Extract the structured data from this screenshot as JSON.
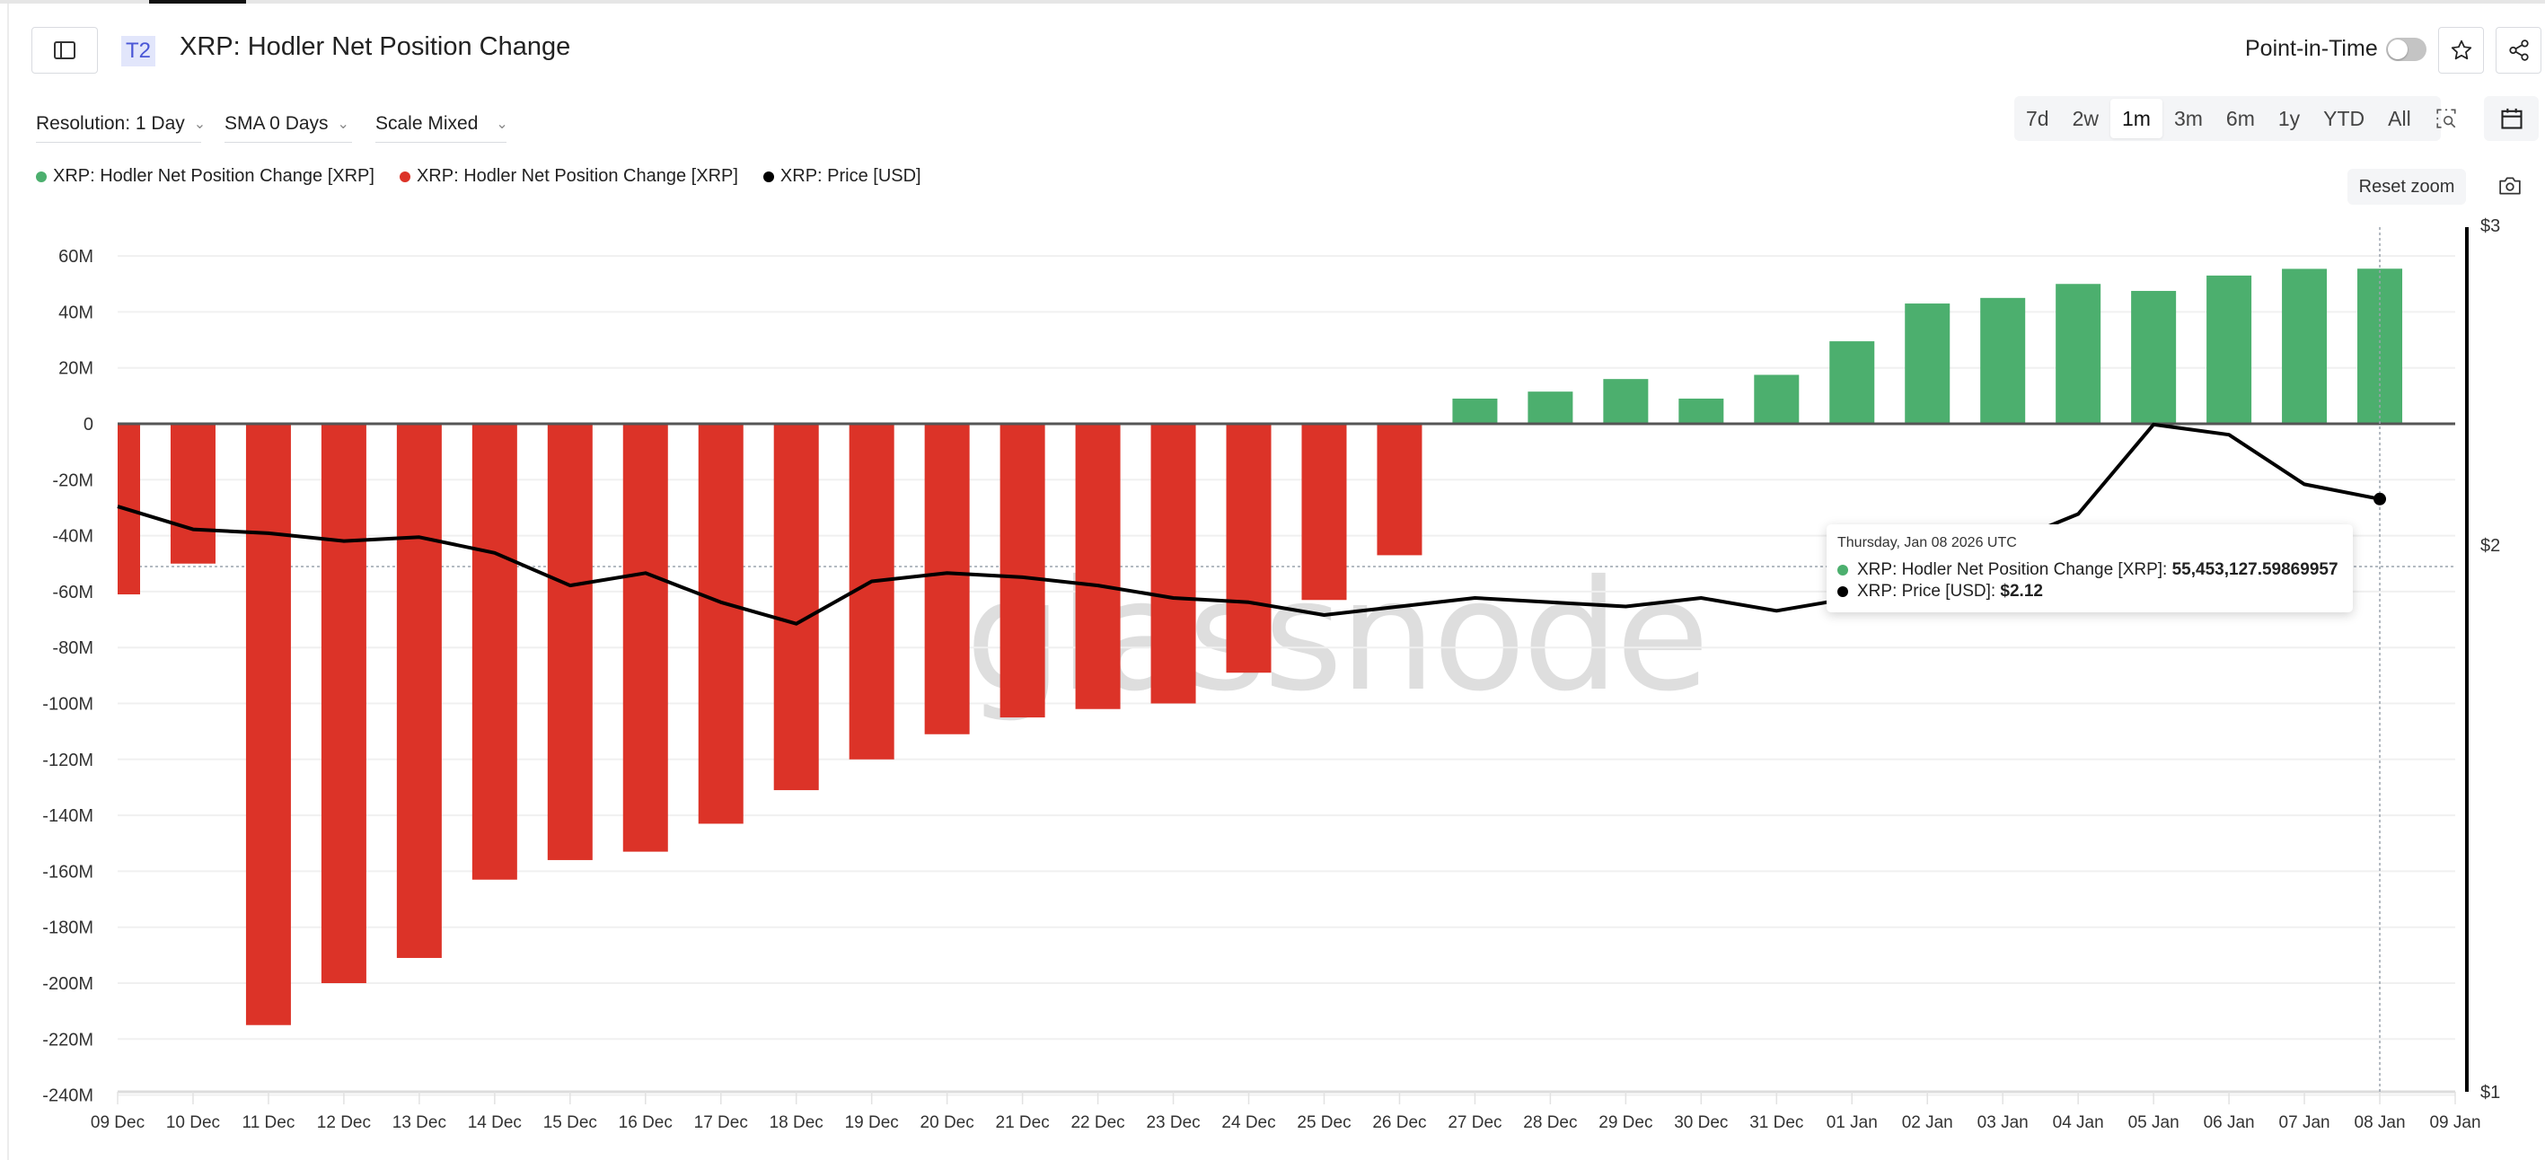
{
  "header": {
    "badge": "T2",
    "title": "XRP: Hodler Net Position Change",
    "point_in_time_label": "Point-in-Time",
    "point_in_time_enabled": false
  },
  "filters": {
    "resolution": "Resolution: 1 Day",
    "sma": "SMA 0 Days",
    "scale": "Scale Mixed"
  },
  "range_buttons": [
    "7d",
    "2w",
    "1m",
    "3m",
    "6m",
    "1y",
    "YTD",
    "All"
  ],
  "range_selected": "1m",
  "legend": [
    {
      "label": "XRP: Hodler Net Position Change [XRP]",
      "color": "#4caf6e"
    },
    {
      "label": "XRP: Hodler Net Position Change [XRP]",
      "color": "#dc3328"
    },
    {
      "label": "XRP: Price [USD]",
      "color": "#000000"
    }
  ],
  "reset_zoom_label": "Reset zoom",
  "watermark": "glassnode",
  "tooltip": {
    "date": "Thursday, Jan 08 2026 UTC",
    "rows": [
      {
        "label": "XRP: Hodler Net Position Change [XRP]: ",
        "value": "55,453,127.59869957",
        "color": "#4caf6e"
      },
      {
        "label": "XRP: Price [USD]: ",
        "value": "$2.12",
        "color": "#000000"
      }
    ]
  },
  "colors": {
    "positive": "#4caf6e",
    "negative": "#dc3328",
    "price": "#000000"
  },
  "chart_data": {
    "type": "bar",
    "title": "XRP: Hodler Net Position Change",
    "categories": [
      "09 Dec",
      "10 Dec",
      "11 Dec",
      "12 Dec",
      "13 Dec",
      "14 Dec",
      "15 Dec",
      "16 Dec",
      "17 Dec",
      "18 Dec",
      "19 Dec",
      "20 Dec",
      "21 Dec",
      "22 Dec",
      "23 Dec",
      "24 Dec",
      "25 Dec",
      "26 Dec",
      "27 Dec",
      "28 Dec",
      "29 Dec",
      "30 Dec",
      "31 Dec",
      "01 Jan",
      "02 Jan",
      "03 Jan",
      "04 Jan",
      "05 Jan",
      "06 Jan",
      "07 Jan",
      "08 Jan"
    ],
    "x_tick_labels": [
      "09 Dec",
      "10 Dec",
      "11 Dec",
      "12 Dec",
      "13 Dec",
      "14 Dec",
      "15 Dec",
      "16 Dec",
      "17 Dec",
      "18 Dec",
      "19 Dec",
      "20 Dec",
      "21 Dec",
      "22 Dec",
      "23 Dec",
      "24 Dec",
      "25 Dec",
      "26 Dec",
      "27 Dec",
      "28 Dec",
      "29 Dec",
      "30 Dec",
      "31 Dec",
      "01 Jan",
      "02 Jan",
      "03 Jan",
      "04 Jan",
      "05 Jan",
      "06 Jan",
      "07 Jan",
      "08 Jan",
      "09 Jan"
    ],
    "series": [
      {
        "name": "XRP: Hodler Net Position Change [XRP]",
        "axis": "left",
        "kind": "bar",
        "values_millions": [
          -61,
          -50,
          -215,
          -200,
          -191,
          -163,
          -156,
          -153,
          -143,
          -131,
          -120,
          -111,
          -105,
          -102,
          -100,
          -89,
          -63,
          -47,
          9,
          11.5,
          16,
          9,
          17.5,
          29.5,
          43,
          45,
          50,
          47.5,
          53,
          55.4,
          55.453
        ]
      },
      {
        "name": "XRP: Price [USD]",
        "axis": "right",
        "kind": "line",
        "values": [
          2.1,
          2.04,
          2.03,
          2.01,
          2.02,
          1.98,
          1.9,
          1.93,
          1.86,
          1.81,
          1.91,
          1.93,
          1.92,
          1.9,
          1.87,
          1.86,
          1.83,
          1.85,
          1.87,
          1.86,
          1.85,
          1.87,
          1.84,
          1.87,
          1.92,
          2.0,
          2.08,
          2.33,
          2.3,
          2.16,
          2.12
        ]
      }
    ],
    "y_left": {
      "ticks": [
        "60M",
        "40M",
        "20M",
        "0",
        "-20M",
        "-40M",
        "-60M",
        "-80M",
        "-100M",
        "-120M",
        "-140M",
        "-160M",
        "-180M",
        "-200M",
        "-220M",
        "-240M"
      ],
      "range": [
        -240,
        60
      ],
      "unit": "M XRP"
    },
    "y_right": {
      "ticks": [
        "$3",
        "$2",
        "$1"
      ],
      "scale": "log",
      "range": [
        1,
        3
      ]
    },
    "grid": true,
    "legend_position": "top-left",
    "crosshair_date": "08 Jan"
  }
}
